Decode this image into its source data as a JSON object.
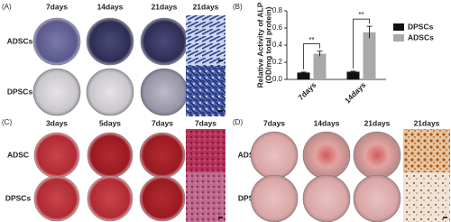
{
  "panels": [
    {
      "label": "(A)",
      "columns": [
        "7days",
        "14days",
        "21days",
        "21days"
      ],
      "rows": [
        "ADSCs",
        "DPSCs"
      ]
    },
    {
      "label": "(C)",
      "columns": [
        "3days",
        "5days",
        "7days",
        "7days"
      ],
      "rows": [
        "ADSC",
        "DPSCs"
      ]
    },
    {
      "label": "(D)",
      "columns": [
        "7days",
        "14days",
        "21days",
        "21days"
      ],
      "rows": [
        "ADSCs",
        "DPSCs"
      ]
    }
  ],
  "chart_data": {
    "type": "bar",
    "panel_label": "(B)",
    "y_label": [
      "Relative Activity of ALP",
      "(OD/mg total protein)"
    ],
    "categories": [
      "7days",
      "14days"
    ],
    "series": [
      {
        "name": "DPSCs",
        "color": "#111111",
        "values": [
          0.08,
          0.09
        ],
        "errors": [
          0.005,
          0.006
        ]
      },
      {
        "name": "ADSCs",
        "color": "#a9a9a9",
        "values": [
          0.3,
          0.55
        ],
        "errors": [
          0.03,
          0.07
        ]
      }
    ],
    "significance": [
      "**",
      "**"
    ],
    "ylim": [
      0,
      0.8
    ],
    "yticks": [
      {
        "value": 0,
        "label": "0.0"
      },
      0.2,
      0.4,
      0.6,
      0.8
    ],
    "legend": "right"
  }
}
